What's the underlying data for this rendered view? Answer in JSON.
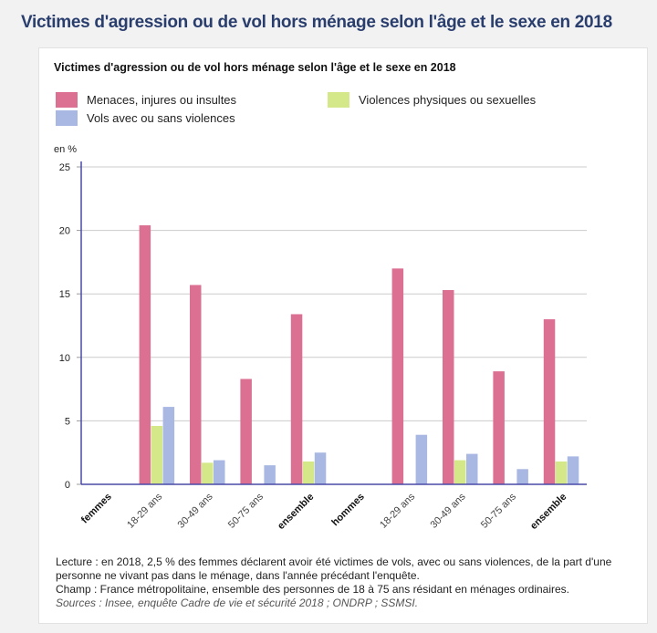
{
  "page_title": "Victimes d'agression ou de vol hors ménage selon l'âge et le sexe en 2018",
  "notes": {
    "lecture": "Lecture : en 2018, 2,5 % des femmes déclarent avoir été victimes de vols, avec ou sans violences, de la part d'une personne ne vivant pas dans le ménage, dans l'année précédant l'enquête.",
    "champ": "Champ : France métropolitaine, ensemble des personnes de 18 à 75 ans résidant en ménages ordinaires.",
    "sources": "Sources : Insee, enquête Cadre de vie et sécurité 2018 ; ONDRP ; SSMSI."
  },
  "chart_data": {
    "type": "bar",
    "title": "Victimes d'agression ou de vol hors ménage selon l'âge et le sexe en 2018",
    "ylabel": "en %",
    "xlabel": "",
    "ylim": [
      0,
      25
    ],
    "yticks": [
      0,
      5,
      10,
      15,
      20,
      25
    ],
    "grid": true,
    "legend_position": "top",
    "categories": [
      "femmes",
      "18-29 ans",
      "30-49 ans",
      "50-75 ans",
      "ensemble",
      "hommes",
      "18-29 ans",
      "30-49 ans",
      "50-75 ans",
      "ensemble"
    ],
    "category_bold": [
      true,
      false,
      false,
      false,
      true,
      true,
      false,
      false,
      false,
      true
    ],
    "series": [
      {
        "name": "Menaces, injures ou insultes",
        "color": "#db7093",
        "values": [
          null,
          20.4,
          15.7,
          8.3,
          13.4,
          null,
          17.0,
          15.3,
          8.9,
          13.0
        ]
      },
      {
        "name": "Violences physiques ou sexuelles",
        "color": "#d4e88a",
        "values": [
          null,
          4.6,
          1.7,
          null,
          1.8,
          null,
          null,
          1.9,
          null,
          1.8
        ]
      },
      {
        "name": "Vols avec ou sans violences",
        "color": "#a9b8e3",
        "values": [
          null,
          6.1,
          1.9,
          1.5,
          2.5,
          null,
          3.9,
          2.4,
          1.2,
          2.2
        ]
      }
    ],
    "axis_color": "#4a4aa8",
    "grid_color": "#cccccc"
  }
}
